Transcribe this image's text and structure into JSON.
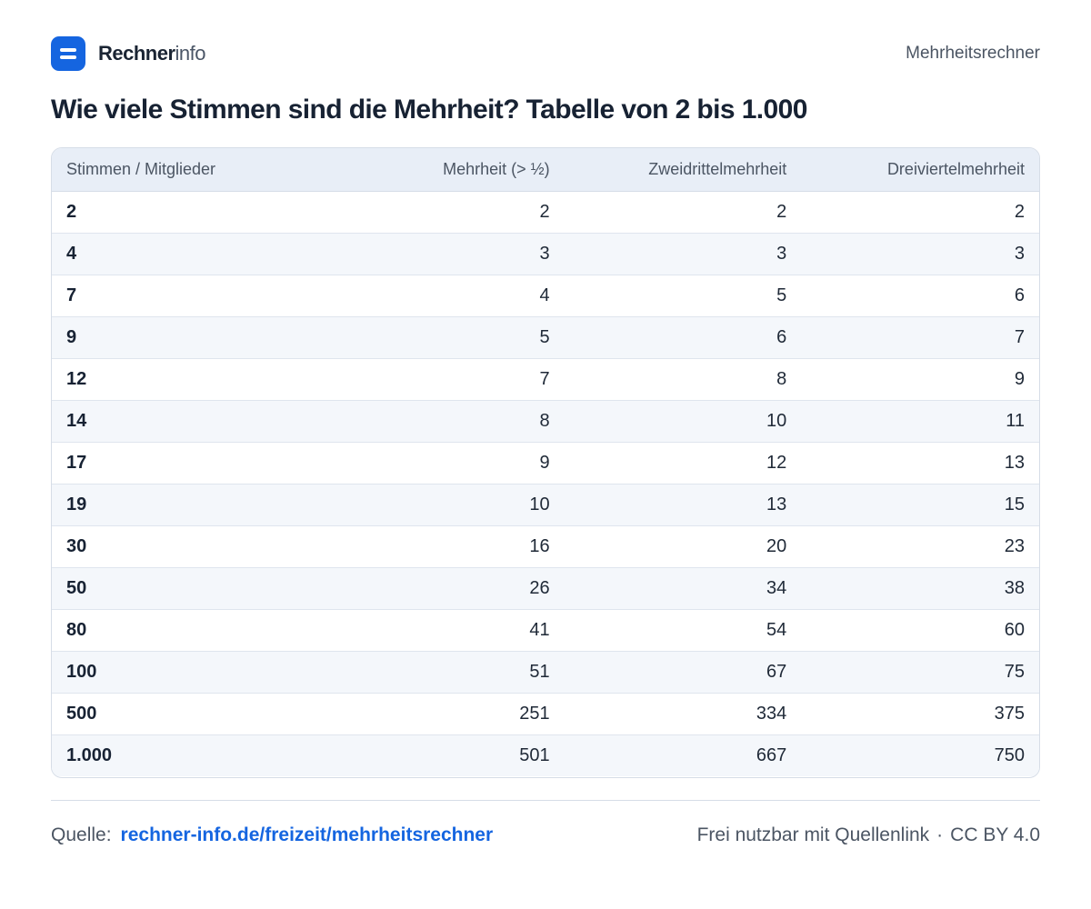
{
  "header": {
    "brand_strong": "Rechner",
    "brand_light": "info",
    "right_label": "Mehrheitsrechner",
    "logo_color": "#1565e0"
  },
  "title": "Wie viele Stimmen sind die Mehrheit? Tabelle von 2 bis 1.000",
  "table": {
    "columns": [
      "Stimmen / Mitglieder",
      "Mehrheit (> ½)",
      "Zweidrittelmehrheit",
      "Dreiviertelmehrheit"
    ],
    "rows": [
      [
        "2",
        "2",
        "2",
        "2"
      ],
      [
        "4",
        "3",
        "3",
        "3"
      ],
      [
        "7",
        "4",
        "5",
        "6"
      ],
      [
        "9",
        "5",
        "6",
        "7"
      ],
      [
        "12",
        "7",
        "8",
        "9"
      ],
      [
        "14",
        "8",
        "10",
        "11"
      ],
      [
        "17",
        "9",
        "12",
        "13"
      ],
      [
        "19",
        "10",
        "13",
        "15"
      ],
      [
        "30",
        "16",
        "20",
        "23"
      ],
      [
        "50",
        "26",
        "34",
        "38"
      ],
      [
        "80",
        "41",
        "54",
        "60"
      ],
      [
        "100",
        "51",
        "67",
        "75"
      ],
      [
        "500",
        "251",
        "334",
        "375"
      ],
      [
        "1.000",
        "501",
        "667",
        "750"
      ]
    ]
  },
  "footer": {
    "source_label": "Quelle:",
    "source_link": "rechner-info.de/freizeit/mehrheitsrechner",
    "license_text": "Frei nutzbar mit Quellenlink",
    "separator": "·",
    "license": "CC BY 4.0"
  }
}
